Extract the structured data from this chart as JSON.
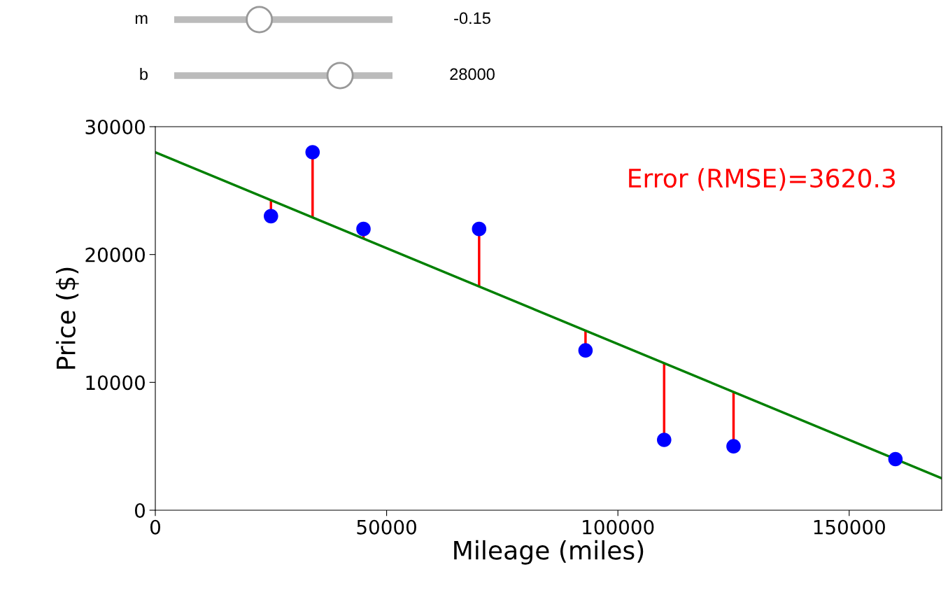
{
  "chart_data": {
    "type": "scatter",
    "xlabel": "Mileage (miles)",
    "ylabel": "Price ($)",
    "annotations": [
      "m",
      "-0.15",
      "b",
      "28000",
      "Error (RMSE)=3620.3"
    ],
    "xlim": [
      0,
      170000
    ],
    "xticks": [
      0,
      50000,
      100000,
      150000
    ],
    "ylim": [
      0,
      30000
    ],
    "yticks": [
      0,
      10000,
      20000,
      30000
    ],
    "grid": false,
    "legend": false,
    "marker": "circle",
    "series": [
      {
        "type": "line",
        "marker": "none",
        "color": "#008000",
        "x": [
          0,
          170000
        ],
        "values": [
          28000,
          2500
        ]
      },
      {
        "color": "#0000ff",
        "x": [
          25000,
          34000,
          45000,
          70000,
          93000,
          110000,
          125000,
          160000
        ],
        "values": [
          23000,
          28000,
          22000,
          22000,
          12500,
          5500,
          5000,
          4000
        ],
        "errors": [
          [
            23000,
            24250
          ],
          [
            22900,
            28000
          ],
          [
            21250,
            22000
          ],
          [
            17500,
            22000
          ],
          [
            12500,
            14050
          ],
          [
            5500,
            11500
          ],
          [
            5000,
            9250
          ],
          null
        ]
      }
    ]
  }
}
